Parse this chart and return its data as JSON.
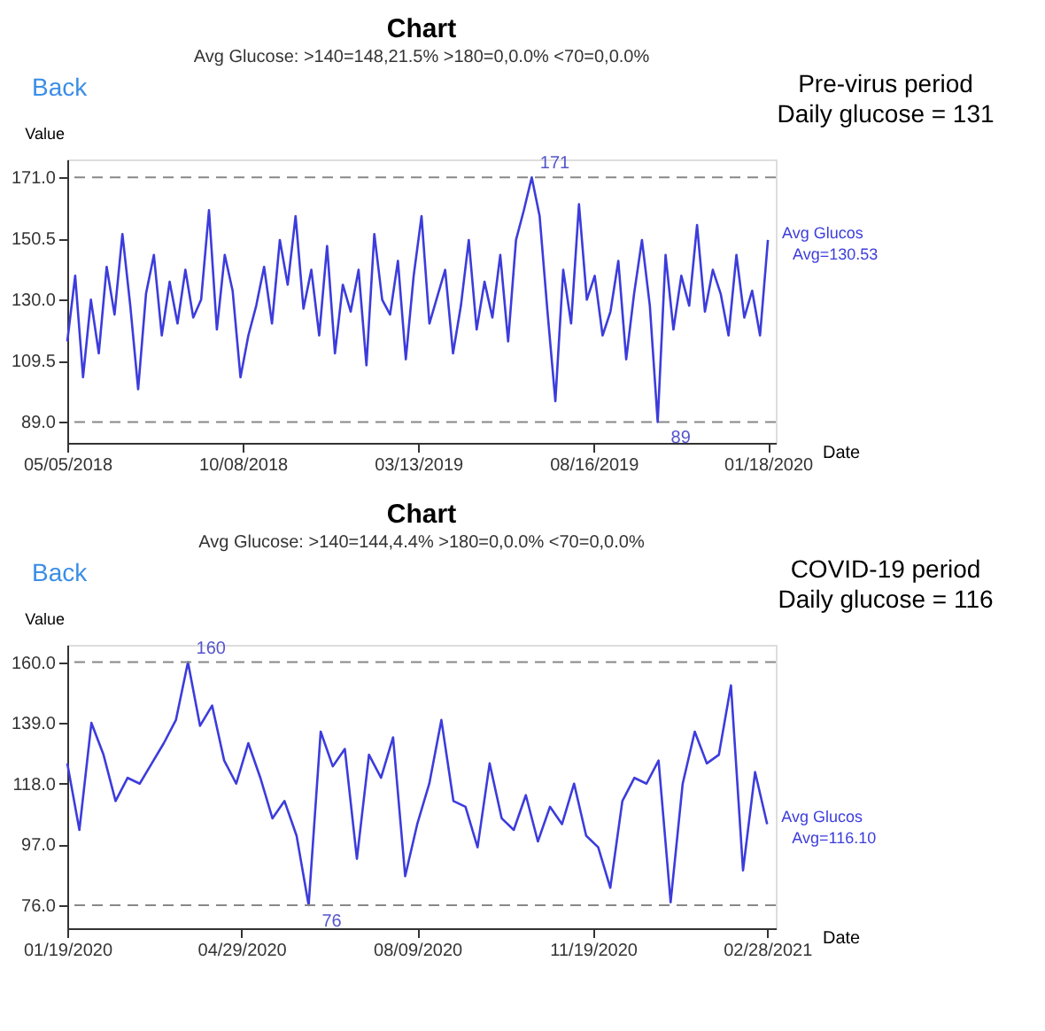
{
  "chart_data": [
    {
      "type": "line",
      "title": "Chart",
      "subtitle": "Avg Glucose: >140=148,21.5%  >180=0,0.0%  <70=0,0.0%",
      "xlabel": "Date",
      "ylabel": "Value",
      "x": [
        "2018-05-05",
        "2018-05-12",
        "2018-05-19",
        "2018-05-26",
        "2018-06-02",
        "2018-06-09",
        "2018-06-16",
        "2018-06-23",
        "2018-06-30",
        "2018-07-07",
        "2018-07-14",
        "2018-07-21",
        "2018-07-28",
        "2018-08-04",
        "2018-08-11",
        "2018-08-18",
        "2018-08-25",
        "2018-09-01",
        "2018-09-08",
        "2018-09-15",
        "2018-09-22",
        "2018-09-29",
        "2018-10-06",
        "2018-10-13",
        "2018-10-20",
        "2018-10-27",
        "2018-11-03",
        "2018-11-10",
        "2018-11-17",
        "2018-11-24",
        "2018-12-01",
        "2018-12-08",
        "2018-12-15",
        "2018-12-22",
        "2018-12-29",
        "2019-01-05",
        "2019-01-12",
        "2019-01-19",
        "2019-01-26",
        "2019-02-02",
        "2019-02-09",
        "2019-02-16",
        "2019-02-23",
        "2019-03-02",
        "2019-03-09",
        "2019-03-16",
        "2019-03-23",
        "2019-03-30",
        "2019-04-06",
        "2019-04-13",
        "2019-04-20",
        "2019-04-27",
        "2019-05-04",
        "2019-05-11",
        "2019-05-18",
        "2019-05-25",
        "2019-06-01",
        "2019-06-08",
        "2019-06-15",
        "2019-06-22",
        "2019-06-29",
        "2019-07-06",
        "2019-07-13",
        "2019-07-20",
        "2019-07-27",
        "2019-08-03",
        "2019-08-10",
        "2019-08-17",
        "2019-08-24",
        "2019-08-31",
        "2019-09-07",
        "2019-09-14",
        "2019-09-21",
        "2019-09-28",
        "2019-10-05",
        "2019-10-12",
        "2019-10-19",
        "2019-10-26",
        "2019-11-02",
        "2019-11-09",
        "2019-11-16",
        "2019-11-23",
        "2019-11-30",
        "2019-12-07",
        "2019-12-14",
        "2019-12-21",
        "2019-12-28",
        "2020-01-04",
        "2020-01-11",
        "2020-01-18"
      ],
      "series": [
        {
          "name": "Avg Glucos",
          "color": "#3c3cdc",
          "values": [
            116,
            138,
            104,
            130,
            112,
            141,
            125,
            152,
            128,
            100,
            132,
            145,
            118,
            136,
            122,
            140,
            124,
            130,
            160,
            120,
            145,
            133,
            104,
            118,
            128,
            141,
            122,
            150,
            135,
            158,
            127,
            140,
            118,
            148,
            112,
            135,
            126,
            140,
            108,
            152,
            130,
            125,
            143,
            110,
            138,
            158,
            122,
            131,
            140,
            112,
            128,
            150,
            120,
            136,
            124,
            145,
            116,
            150,
            160,
            171,
            158,
            126,
            96,
            140,
            122,
            162,
            130,
            138,
            118,
            126,
            143,
            110,
            132,
            150,
            128,
            89,
            145,
            120,
            138,
            128,
            155,
            126,
            140,
            132,
            118,
            145,
            124,
            133,
            118,
            150
          ]
        }
      ],
      "xlim": [
        "2018-05-05",
        "2020-01-25"
      ],
      "ylim": [
        82,
        177
      ],
      "xticks": [
        {
          "value": "2018-05-05",
          "label": "05/05/2018"
        },
        {
          "value": "2018-10-08",
          "label": "10/08/2018"
        },
        {
          "value": "2019-03-13",
          "label": "03/13/2019"
        },
        {
          "value": "2019-08-16",
          "label": "08/16/2019"
        },
        {
          "value": "2020-01-18",
          "label": "01/18/2020"
        }
      ],
      "yticks": [
        {
          "value": 89,
          "label": "89.0"
        },
        {
          "value": 109.5,
          "label": "109.5"
        },
        {
          "value": 130,
          "label": "130.0"
        },
        {
          "value": 150.5,
          "label": "150.5"
        },
        {
          "value": 171,
          "label": "171.0"
        }
      ],
      "ref_lines": [
        {
          "axis": "y",
          "value": 171,
          "color": "#888888",
          "line_style": "dashed"
        },
        {
          "axis": "y",
          "value": 89,
          "color": "#888888",
          "line_style": "dashed"
        }
      ],
      "annotations": [
        "Back",
        "Pre-virus period",
        "Daily glucose = 131",
        {
          "text": "171",
          "x": "2019-06-22",
          "y": 171
        },
        {
          "text": "89",
          "x": "2019-10-12",
          "y": 89
        },
        "Avg=130.53"
      ],
      "grid": false,
      "line_style": "solid"
    },
    {
      "type": "line",
      "title": "Chart",
      "subtitle": "Avg Glucose: >140=144,4.4%  >180=0,0.0%  <70=0,0.0%",
      "xlabel": "Date",
      "ylabel": "Value",
      "x": [
        "2020-01-19",
        "2020-01-26",
        "2020-02-02",
        "2020-02-09",
        "2020-02-16",
        "2020-02-23",
        "2020-03-01",
        "2020-03-08",
        "2020-03-15",
        "2020-03-22",
        "2020-03-29",
        "2020-04-05",
        "2020-04-12",
        "2020-04-19",
        "2020-04-26",
        "2020-05-03",
        "2020-05-10",
        "2020-05-17",
        "2020-05-24",
        "2020-05-31",
        "2020-06-07",
        "2020-06-14",
        "2020-06-21",
        "2020-06-28",
        "2020-07-05",
        "2020-07-12",
        "2020-07-19",
        "2020-07-26",
        "2020-08-02",
        "2020-08-09",
        "2020-08-16",
        "2020-08-23",
        "2020-08-30",
        "2020-09-06",
        "2020-09-13",
        "2020-09-20",
        "2020-09-27",
        "2020-10-04",
        "2020-10-11",
        "2020-10-18",
        "2020-10-25",
        "2020-11-01",
        "2020-11-08",
        "2020-11-15",
        "2020-11-22",
        "2020-11-29",
        "2020-12-06",
        "2020-12-13",
        "2020-12-20",
        "2020-12-27",
        "2021-01-03",
        "2021-01-10",
        "2021-01-17",
        "2021-01-24",
        "2021-01-31",
        "2021-02-07",
        "2021-02-14",
        "2021-02-21",
        "2021-02-28"
      ],
      "series": [
        {
          "name": "Avg Glucos",
          "color": "#3c3cdc",
          "values": [
            125,
            102,
            139,
            128,
            112,
            120,
            118,
            125,
            132,
            140,
            160,
            138,
            145,
            126,
            118,
            132,
            120,
            106,
            112,
            100,
            76,
            136,
            124,
            130,
            92,
            128,
            120,
            134,
            86,
            104,
            118,
            140,
            112,
            110,
            96,
            125,
            106,
            102,
            114,
            98,
            110,
            104,
            118,
            100,
            96,
            82,
            112,
            120,
            118,
            126,
            77,
            118,
            136,
            125,
            128,
            152,
            88,
            122,
            104
          ]
        }
      ],
      "xlim": [
        "2020-01-19",
        "2021-03-05"
      ],
      "ylim": [
        68,
        166
      ],
      "xticks": [
        {
          "value": "2020-01-19",
          "label": "01/19/2020"
        },
        {
          "value": "2020-04-29",
          "label": "04/29/2020"
        },
        {
          "value": "2020-08-09",
          "label": "08/09/2020"
        },
        {
          "value": "2020-11-19",
          "label": "11/19/2020"
        },
        {
          "value": "2021-02-28",
          "label": "02/28/2021"
        }
      ],
      "yticks": [
        {
          "value": 76,
          "label": "76.0"
        },
        {
          "value": 97,
          "label": "97.0"
        },
        {
          "value": 118,
          "label": "118.0"
        },
        {
          "value": 139,
          "label": "139.0"
        },
        {
          "value": 160,
          "label": "160.0"
        }
      ],
      "ref_lines": [
        {
          "axis": "y",
          "value": 160,
          "color": "#888888",
          "line_style": "dashed"
        },
        {
          "axis": "y",
          "value": 76,
          "color": "#888888",
          "line_style": "dashed"
        }
      ],
      "annotations": [
        "Back",
        "COVID-19 period",
        "Daily glucose = 116",
        {
          "text": "160",
          "x": "2020-03-29",
          "y": 160
        },
        {
          "text": "76",
          "x": "2020-06-07",
          "y": 76
        },
        "Avg=116.10"
      ],
      "grid": false,
      "line_style": "solid"
    }
  ]
}
